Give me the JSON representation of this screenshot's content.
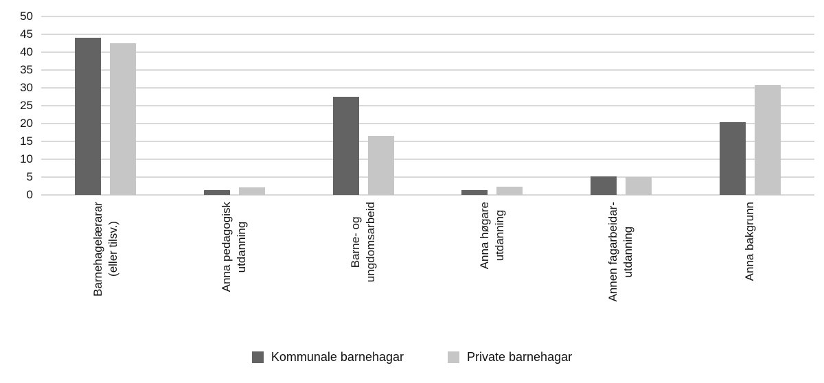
{
  "chart_data": {
    "type": "bar",
    "title": "",
    "xlabel": "",
    "ylabel": "",
    "ylim": [
      0,
      50
    ],
    "yticks": [
      0,
      5,
      10,
      15,
      20,
      25,
      30,
      35,
      40,
      45,
      50
    ],
    "grid": "horizontal",
    "legend_position": "bottom",
    "categories": [
      "Barnehagelærarar\n(eller tilsv.)",
      "Anna pedagogisk\nutdanning",
      "Barne- og\nungdomsarbeid",
      "Anna høgare\nutdanning",
      "Annen fagarbeidar-\nutdanning",
      "Anna bakgrunn"
    ],
    "series": [
      {
        "name": "Kommunale barnehagar",
        "color": "#636363",
        "values": [
          44,
          1.4,
          27.5,
          1.3,
          5.2,
          20.3
        ]
      },
      {
        "name": "Private barnehagar",
        "color": "#c6c6c6",
        "values": [
          42.5,
          2.2,
          16.5,
          2.4,
          5.0,
          30.8
        ]
      }
    ]
  },
  "colors": {
    "gridline": "#b3b3b3"
  }
}
